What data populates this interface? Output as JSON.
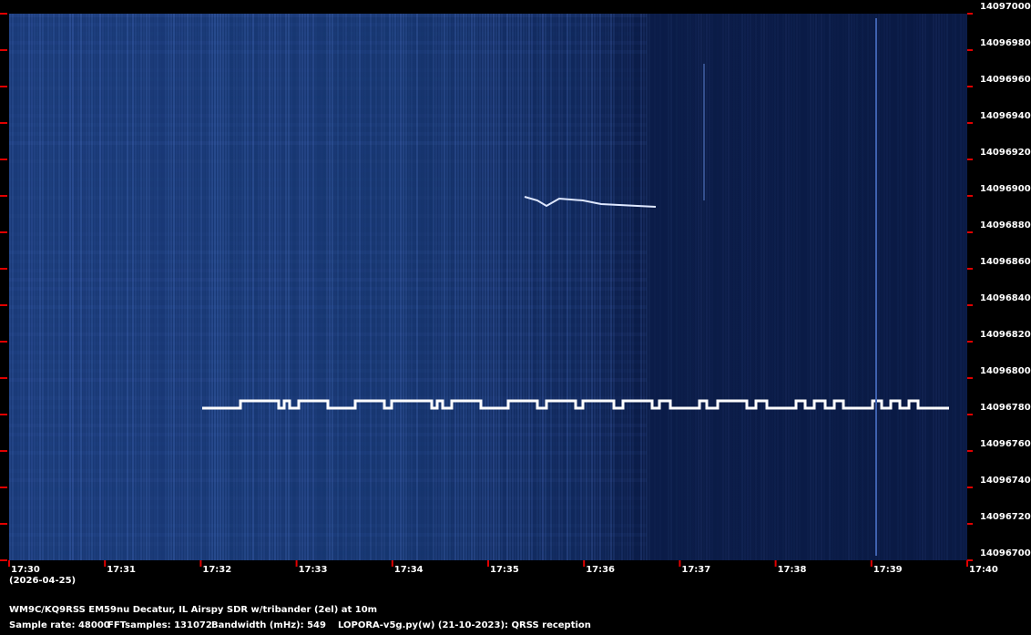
{
  "chart_data": {
    "type": "spectrogram",
    "categories": [
      "17:30",
      "17:31",
      "17:32",
      "17:33",
      "17:34",
      "17:35",
      "17:36",
      "17:37",
      "17:38",
      "17:39",
      "17:40"
    ],
    "date": "(2026-04-25)",
    "ylim": [
      14096700,
      14097000
    ],
    "yticks": [
      14096700,
      14096720,
      14096740,
      14096760,
      14096780,
      14096800,
      14096820,
      14096840,
      14096860,
      14096880,
      14096900,
      14096920,
      14096940,
      14096960,
      14096980,
      14097000
    ],
    "tick_color": "#e00000",
    "station": "WM9C/KQ9RSS EM59nu Decatur, IL  Airspy SDR w/tribander (2el) at 10m",
    "info": [
      "Sample rate: 48000",
      "FFTsamples: 131072",
      "Bandwidth (mHz): 549",
      "LOPORA-v5g.py(w) (21-10-2023): QRSS reception"
    ]
  }
}
